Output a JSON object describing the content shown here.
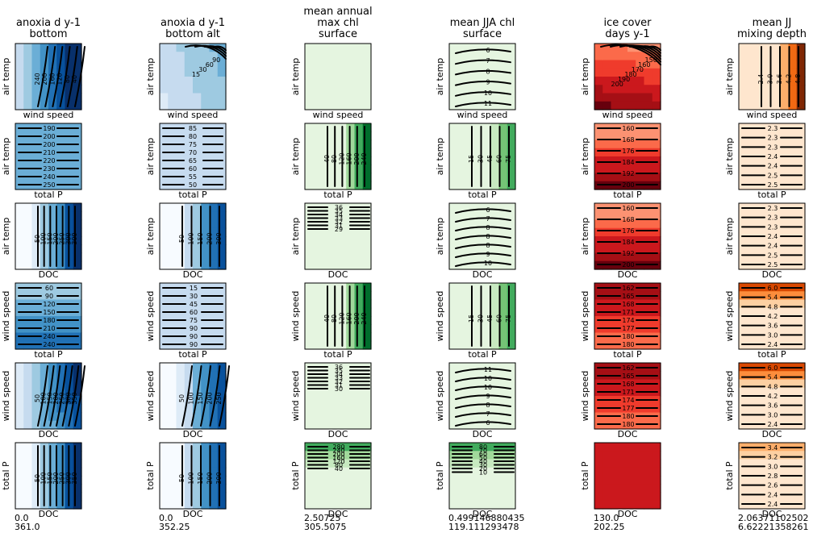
{
  "figure": {
    "columns": [
      {
        "title_lines": [
          "anoxia d y-1",
          "bottom"
        ],
        "palette": "blues",
        "range_min": "0.0",
        "range_max": "361.0"
      },
      {
        "title_lines": [
          "anoxia d y-1",
          "bottom alt"
        ],
        "palette": "blues",
        "range_min": "0.0",
        "range_max": "352.25"
      },
      {
        "title_lines": [
          "mean annual",
          "max chl",
          "surface"
        ],
        "palette": "greens",
        "range_min": "2.50725",
        "range_max": "305.5075"
      },
      {
        "title_lines": [
          "mean JJA chl",
          "surface"
        ],
        "palette": "greens",
        "range_min": "0.499146880435",
        "range_max": "119.111293478"
      },
      {
        "title_lines": [
          "ice cover",
          "days y-1"
        ],
        "palette": "reds",
        "range_min": "130.0",
        "range_max": "202.25"
      },
      {
        "title_lines": [
          "mean JJ",
          "mixing depth"
        ],
        "palette": "oranges",
        "range_min": "2.06371102502",
        "range_max": "6.62221358261"
      }
    ],
    "rows": [
      {
        "xlabel": "wind speed",
        "ylabel": "air temp"
      },
      {
        "xlabel": "total P",
        "ylabel": "air temp"
      },
      {
        "xlabel": "DOC",
        "ylabel": "air temp"
      },
      {
        "xlabel": "total P",
        "ylabel": "wind speed"
      },
      {
        "xlabel": "DOC",
        "ylabel": "wind speed"
      },
      {
        "xlabel": "DOC",
        "ylabel": "total P"
      }
    ],
    "palettes": {
      "blues": [
        "#f7fbff",
        "#deebf7",
        "#c6dbef",
        "#9ecae1",
        "#6baed6",
        "#4292c6",
        "#2171b5",
        "#08519c",
        "#08306b"
      ],
      "greens": [
        "#f7fcf5",
        "#e5f5e0",
        "#c7e9c0",
        "#a1d99b",
        "#74c476",
        "#41ab5d",
        "#238b45",
        "#006d2c",
        "#00441b"
      ],
      "reds": [
        "#fff5f0",
        "#fee0d2",
        "#fcbba1",
        "#fc9272",
        "#fb6a4a",
        "#ef3b2c",
        "#cb181d",
        "#a50f15",
        "#67000d"
      ],
      "oranges": [
        "#fff5eb",
        "#fee6ce",
        "#fdd0a2",
        "#fdae6b",
        "#fd8d3c",
        "#f16913",
        "#d94801",
        "#a63603",
        "#7f2704"
      ]
    }
  },
  "chart_data": {
    "type": "heatmap",
    "title": "",
    "panels": [
      {
        "row": 0,
        "col": 0,
        "xlabel": "wind speed",
        "ylabel": "air temp",
        "field": "radial",
        "levels": [
          0.25,
          0.35,
          0.45,
          0.55,
          0.65,
          0.8
        ],
        "contour_values": [
          "240",
          "200",
          "160",
          "120",
          "80",
          "40"
        ]
      },
      {
        "row": 0,
        "col": 1,
        "xlabel": "wind speed",
        "ylabel": "air temp",
        "field": "radial_light",
        "levels": [
          0.2,
          0.35,
          0.5,
          0.65
        ],
        "contour_values": [
          "90",
          "60",
          "30",
          "15"
        ]
      },
      {
        "row": 0,
        "col": 2,
        "xlabel": "wind speed",
        "ylabel": "air temp",
        "field": "flat",
        "levels": [],
        "contour_values": []
      },
      {
        "row": 0,
        "col": 3,
        "xlabel": "wind speed",
        "ylabel": "air temp",
        "field": "diagonal",
        "levels": [
          0.2,
          0.3,
          0.4,
          0.5,
          0.6,
          0.7,
          0.8
        ],
        "contour_values": [
          "6",
          "7",
          "8",
          "9",
          "10",
          "11"
        ]
      },
      {
        "row": 0,
        "col": 4,
        "xlabel": "wind speed",
        "ylabel": "air temp",
        "field": "radial_red",
        "levels": [
          0.2,
          0.4,
          0.6,
          0.8
        ],
        "contour_values": [
          "150",
          "160",
          "170",
          "180",
          "190",
          "200"
        ]
      },
      {
        "row": 0,
        "col": 5,
        "xlabel": "wind speed",
        "ylabel": "air temp",
        "field": "right",
        "levels": [
          0.5,
          0.62,
          0.72,
          0.8,
          0.88,
          0.94
        ],
        "contour_values": [
          "2.4",
          "3.0",
          "3.6",
          "4.2",
          "4.8"
        ]
      },
      {
        "row": 1,
        "col": 0,
        "xlabel": "total P",
        "ylabel": "air temp",
        "field": "hbands_blue",
        "contour_values": [
          "190",
          "200",
          "200",
          "210",
          "220",
          "230",
          "240",
          "250"
        ]
      },
      {
        "row": 1,
        "col": 1,
        "xlabel": "total P",
        "ylabel": "air temp",
        "field": "hbands_double",
        "contour_values": [
          "85",
          "80",
          "75",
          "70",
          "65",
          "60",
          "55",
          "50"
        ]
      },
      {
        "row": 1,
        "col": 2,
        "xlabel": "total P",
        "ylabel": "air temp",
        "field": "right_green",
        "contour_values": [
          "40",
          "80",
          "120",
          "160",
          "200",
          "240"
        ]
      },
      {
        "row": 1,
        "col": 3,
        "xlabel": "total P",
        "ylabel": "air temp",
        "field": "right_green_soft",
        "contour_values": [
          "15",
          "30",
          "45",
          "60",
          "75"
        ]
      },
      {
        "row": 1,
        "col": 4,
        "xlabel": "total P",
        "ylabel": "air temp",
        "field": "hbands_red",
        "contour_values": [
          "160",
          "168",
          "176",
          "184",
          "192",
          "200"
        ]
      },
      {
        "row": 1,
        "col": 5,
        "xlabel": "total P",
        "ylabel": "air temp",
        "field": "hbands_orange",
        "contour_values": [
          "2.3",
          "2.3",
          "2.3",
          "2.4",
          "2.4",
          "2.5",
          "2.5"
        ]
      },
      {
        "row": 2,
        "col": 0,
        "xlabel": "DOC",
        "ylabel": "air temp",
        "field": "vbands_blue",
        "contour_values": [
          "50",
          "100",
          "150",
          "200",
          "250",
          "300",
          "300"
        ]
      },
      {
        "row": 2,
        "col": 1,
        "xlabel": "DOC",
        "ylabel": "air temp",
        "field": "vbands_blue2",
        "contour_values": [
          "50",
          "100",
          "150",
          "200",
          "300"
        ]
      },
      {
        "row": 2,
        "col": 2,
        "xlabel": "DOC",
        "ylabel": "air temp",
        "field": "top_green",
        "contour_values": [
          "36",
          "35",
          "34",
          "33",
          "32",
          "31",
          "29"
        ]
      },
      {
        "row": 2,
        "col": 3,
        "xlabel": "DOC",
        "ylabel": "air temp",
        "field": "flat_green",
        "contour_values": [
          "6",
          "7",
          "8",
          "8",
          "8",
          "9",
          "10"
        ]
      },
      {
        "row": 2,
        "col": 4,
        "xlabel": "DOC",
        "ylabel": "air temp",
        "field": "hbands_red",
        "contour_values": [
          "160",
          "168",
          "176",
          "184",
          "192",
          "200"
        ]
      },
      {
        "row": 2,
        "col": 5,
        "xlabel": "DOC",
        "ylabel": "air temp",
        "field": "hbands_orange",
        "contour_values": [
          "2.3",
          "2.3",
          "2.3",
          "2.4",
          "2.4",
          "2.5",
          "2.5"
        ]
      },
      {
        "row": 3,
        "col": 0,
        "xlabel": "total P",
        "ylabel": "wind speed",
        "field": "hbands_blue_top",
        "contour_values": [
          "60",
          "90",
          "120",
          "150",
          "180",
          "210",
          "240",
          "240"
        ]
      },
      {
        "row": 3,
        "col": 1,
        "xlabel": "total P",
        "ylabel": "wind speed",
        "field": "flat_blue",
        "contour_values": [
          "15",
          "30",
          "45",
          "60",
          "75",
          "90",
          "90",
          "90"
        ]
      },
      {
        "row": 3,
        "col": 2,
        "xlabel": "total P",
        "ylabel": "wind speed",
        "field": "right_green",
        "contour_values": [
          "40",
          "80",
          "120",
          "160",
          "200",
          "240"
        ]
      },
      {
        "row": 3,
        "col": 3,
        "xlabel": "total P",
        "ylabel": "wind speed",
        "field": "right_green_soft",
        "contour_values": [
          "15",
          "30",
          "45",
          "60",
          "75"
        ]
      },
      {
        "row": 3,
        "col": 4,
        "xlabel": "total P",
        "ylabel": "wind speed",
        "field": "hbands_red_top",
        "contour_values": [
          "162",
          "165",
          "168",
          "171",
          "174",
          "177",
          "180",
          "180"
        ]
      },
      {
        "row": 3,
        "col": 5,
        "xlabel": "total P",
        "ylabel": "wind speed",
        "field": "hbands_orange_top",
        "contour_values": [
          "6.0",
          "5.4",
          "4.8",
          "4.2",
          "3.6",
          "3.0",
          "2.4"
        ]
      },
      {
        "row": 4,
        "col": 0,
        "xlabel": "DOC",
        "ylabel": "wind speed",
        "field": "corner_blue",
        "contour_values": [
          "50",
          "100",
          "150",
          "200",
          "250",
          "300",
          "350"
        ]
      },
      {
        "row": 4,
        "col": 1,
        "xlabel": "DOC",
        "ylabel": "wind speed",
        "field": "corner_blue2",
        "contour_values": [
          "50",
          "100",
          "150",
          "200",
          "250"
        ]
      },
      {
        "row": 4,
        "col": 2,
        "xlabel": "DOC",
        "ylabel": "wind speed",
        "field": "top_green",
        "contour_values": [
          "36",
          "35",
          "34",
          "33",
          "32",
          "31",
          "30"
        ]
      },
      {
        "row": 4,
        "col": 3,
        "xlabel": "DOC",
        "ylabel": "wind speed",
        "field": "flat_green2",
        "contour_values": [
          "11",
          "10",
          "10",
          "9",
          "8",
          "7",
          "6"
        ]
      },
      {
        "row": 4,
        "col": 4,
        "xlabel": "DOC",
        "ylabel": "wind speed",
        "field": "hbands_red_top",
        "contour_values": [
          "162",
          "165",
          "168",
          "171",
          "174",
          "177",
          "180",
          "180"
        ]
      },
      {
        "row": 4,
        "col": 5,
        "xlabel": "DOC",
        "ylabel": "wind speed",
        "field": "hbands_orange_top",
        "contour_values": [
          "6.0",
          "5.4",
          "4.8",
          "4.2",
          "3.6",
          "3.0",
          "2.4"
        ]
      },
      {
        "row": 5,
        "col": 0,
        "xlabel": "DOC",
        "ylabel": "total P",
        "field": "vbands_blue",
        "contour_values": [
          "50",
          "100",
          "150",
          "200",
          "250",
          "300",
          "350"
        ]
      },
      {
        "row": 5,
        "col": 1,
        "xlabel": "DOC",
        "ylabel": "total P",
        "field": "vbands_blue2",
        "contour_values": [
          "50",
          "100",
          "150",
          "200",
          "300"
        ]
      },
      {
        "row": 5,
        "col": 2,
        "xlabel": "DOC",
        "ylabel": "total P",
        "field": "top_green_strong",
        "contour_values": [
          "280",
          "240",
          "200",
          "160",
          "120",
          "80",
          "40"
        ]
      },
      {
        "row": 5,
        "col": 3,
        "xlabel": "DOC",
        "ylabel": "total P",
        "field": "top_green_strong",
        "contour_values": [
          "80",
          "70",
          "60",
          "50",
          "40",
          "30",
          "20",
          "10"
        ]
      },
      {
        "row": 5,
        "col": 4,
        "xlabel": "DOC",
        "ylabel": "total P",
        "field": "solid_red",
        "contour_values": []
      },
      {
        "row": 5,
        "col": 5,
        "xlabel": "DOC",
        "ylabel": "total P",
        "field": "hbands_orange_top2",
        "contour_values": [
          "3.4",
          "3.2",
          "3.0",
          "2.8",
          "2.6",
          "2.4",
          "2.4"
        ]
      }
    ]
  }
}
